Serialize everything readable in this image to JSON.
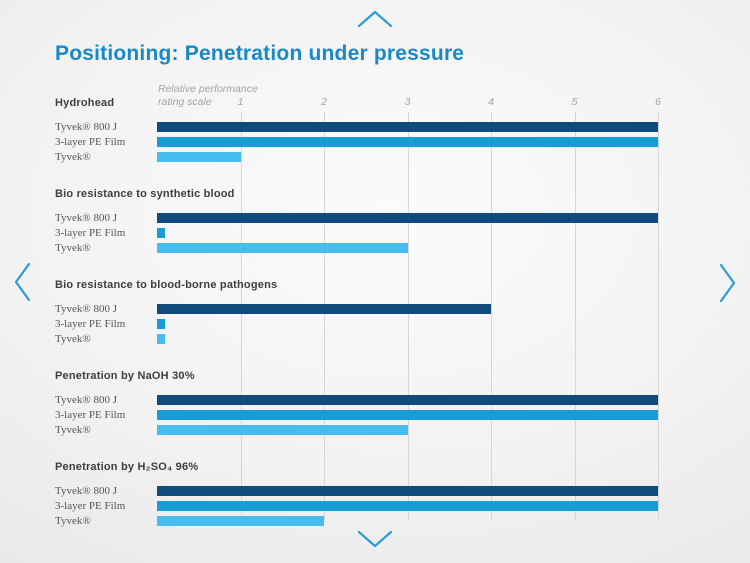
{
  "page": {
    "title": "Positioning: Penetration under pressure"
  },
  "nav": {
    "up_icon": "chevron-up",
    "down_icon": "chevron-down",
    "left_icon": "chevron-left",
    "right_icon": "chevron-right"
  },
  "colors": {
    "title": "#1789c9",
    "arrow": "#2e9bd6",
    "gridline": "#d5d6d8",
    "group_label": "#3e3e3e",
    "row_label": "#565656"
  },
  "chart_data": {
    "type": "bar",
    "orientation": "horizontal",
    "title": "Positioning: Penetration under pressure",
    "axis_label_lines": [
      "Relative performance",
      "rating scale"
    ],
    "xlabel": "Relative performance rating scale",
    "xlim": [
      0,
      6
    ],
    "ticks": [
      1,
      2,
      3,
      4,
      5,
      6
    ],
    "grid": true,
    "series_names": [
      "Tyvek® 800 J",
      "3-layer PE Film",
      "Tyvek®"
    ],
    "series_colors": [
      "#114a7d",
      "#189cd8",
      "#47bced"
    ],
    "groups": [
      {
        "label": "Hydrohead",
        "values": [
          6,
          6,
          1
        ]
      },
      {
        "label": "Bio resistance to synthetic blood",
        "values": [
          6,
          0.1,
          3
        ]
      },
      {
        "label": "Bio resistance to blood-borne pathogens",
        "values": [
          4,
          0.1,
          0.1
        ]
      },
      {
        "label": "Penetration by NaOH 30%",
        "values": [
          6,
          6,
          3
        ]
      },
      {
        "label": "Penetration by H₂SO₄ 96%",
        "values": [
          6,
          6,
          2
        ]
      }
    ]
  }
}
